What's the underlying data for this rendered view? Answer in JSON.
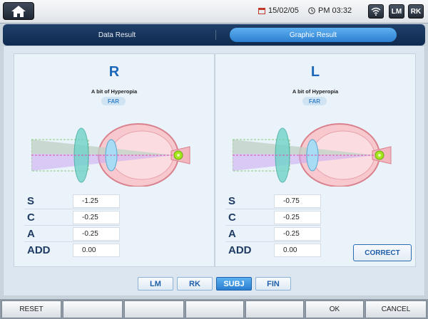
{
  "topbar": {
    "date": "15/02/05",
    "time": "PM 03:32",
    "lm_label": "LM",
    "rk_label": "RK"
  },
  "tabs": {
    "data_result": "Data Result",
    "graphic_result": "Graphic Result",
    "active": "Graphic Result"
  },
  "right_eye": {
    "letter": "R",
    "diagnosis": "A bit of Hyperopia",
    "badge": "FAR",
    "rows": [
      {
        "label": "S",
        "value": "-1.25"
      },
      {
        "label": "C",
        "value": "-0.25"
      },
      {
        "label": "A",
        "value": "-0.25"
      },
      {
        "label": "ADD",
        "value": "0.00"
      }
    ]
  },
  "left_eye": {
    "letter": "L",
    "diagnosis": "A bit of Hyperopia",
    "badge": "FAR",
    "rows": [
      {
        "label": "S",
        "value": "-0.75"
      },
      {
        "label": "C",
        "value": "-0.25"
      },
      {
        "label": "A",
        "value": "-0.25"
      },
      {
        "label": "ADD",
        "value": "0.00"
      }
    ],
    "correct_label": "CORRECT"
  },
  "modes": {
    "lm": "LM",
    "rk": "RK",
    "subj": "SUBJ",
    "fin": "FIN",
    "active": "SUBJ"
  },
  "bottombar": {
    "reset": "RESET",
    "ok": "OK",
    "cancel": "CANCEL"
  },
  "colors": {
    "accent": "#2a7ed0",
    "label": "#1f3b63",
    "letter": "#1d67b8",
    "panel_bg": "#eaf3fa"
  },
  "icons": [
    "home-icon",
    "calendar-icon",
    "clock-icon",
    "wifi-icon"
  ]
}
